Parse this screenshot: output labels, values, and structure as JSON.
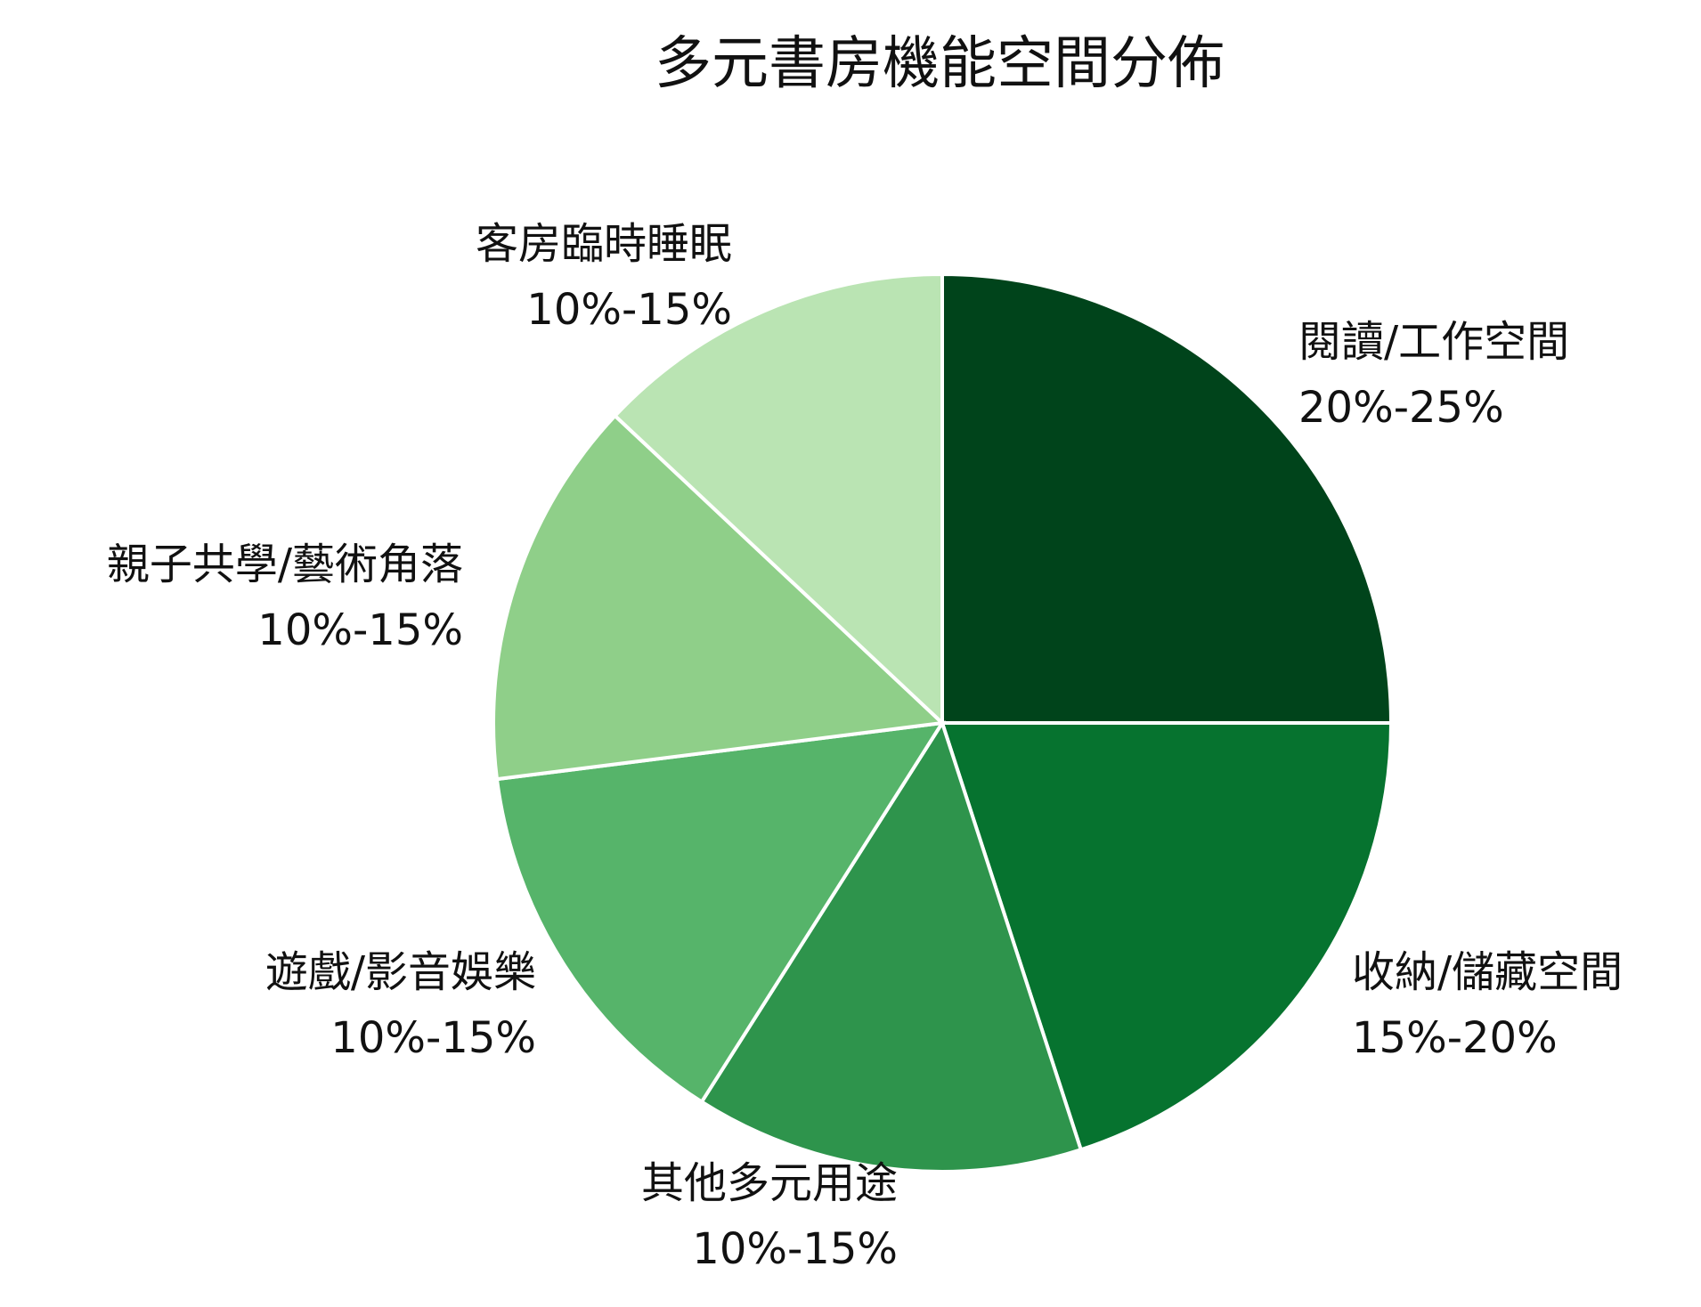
{
  "chart_data": {
    "type": "pie",
    "title": "多元書房機能空間分佈",
    "start_angle_deg": 0,
    "direction": "clockwise",
    "slices": [
      {
        "label": "閱讀/工作空間",
        "range_text": "20%-25%",
        "value": 25,
        "color": "#00441b"
      },
      {
        "label": "收納/儲藏空間",
        "range_text": "15%-20%",
        "value": 20,
        "color": "#06732f"
      },
      {
        "label": "其他多元用途",
        "range_text": "10%-15%",
        "value": 14,
        "color": "#2e944c"
      },
      {
        "label": "遊戲/影音娛樂",
        "range_text": "10%-15%",
        "value": 14,
        "color": "#56b46a"
      },
      {
        "label": "親子共學/藝術角落",
        "range_text": "10%-15%",
        "value": 14,
        "color": "#8fcf89"
      },
      {
        "label": "客房臨時睡眠",
        "range_text": "10%-15%",
        "value": 13,
        "color": "#bae4b3"
      }
    ]
  }
}
